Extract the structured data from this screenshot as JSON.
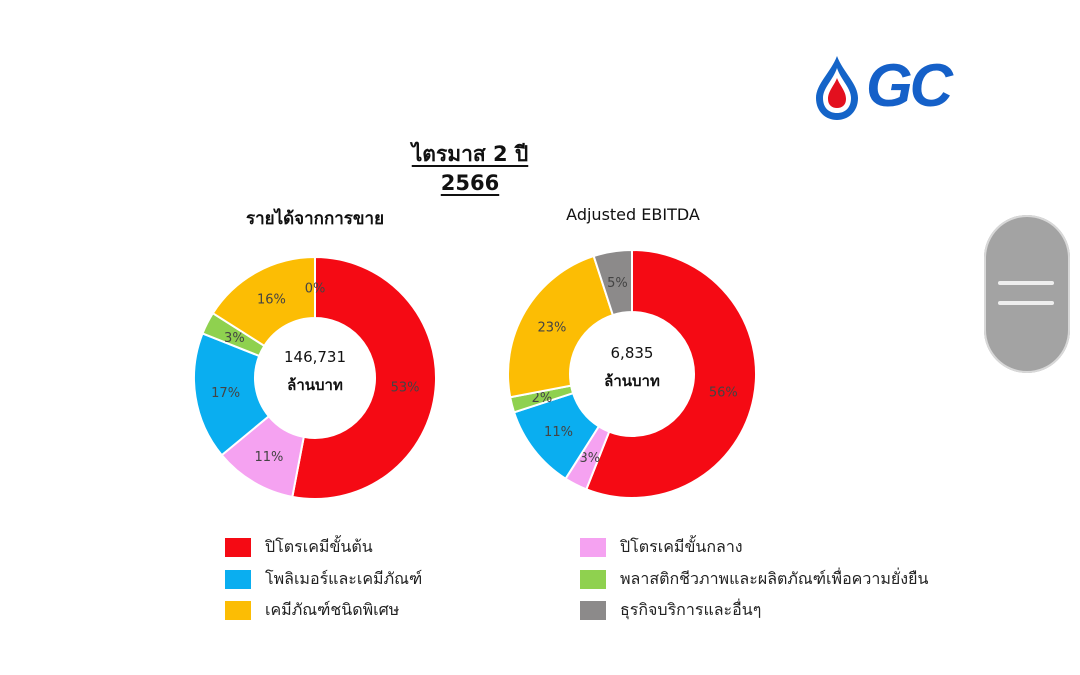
{
  "header": {
    "logo_text": "GC",
    "main_title": "ไตรมาส 2 ปี 2566"
  },
  "colors": {
    "upstream": "#f50a14",
    "intermediate": "#f5a2f1",
    "polymers": "#0aaef0",
    "bio": "#8fd14f",
    "specialty": "#fcbd04",
    "services": "#8c8a8a"
  },
  "chart_data": [
    {
      "type": "pie",
      "title": "รายได้จากการขาย",
      "center_value": "146,731",
      "center_unit": "ล้านบาท",
      "slices": [
        {
          "label": "ปิโตรเคมีขั้นต้น",
          "value": 53,
          "display": "53%",
          "color": "#f50a14"
        },
        {
          "label": "ปิโตรเคมีขั้นกลาง",
          "value": 11,
          "display": "11%",
          "color": "#f5a2f1"
        },
        {
          "label": "โพลิเมอร์และเคมีภัณฑ์",
          "value": 17,
          "display": "17%",
          "color": "#0aaef0"
        },
        {
          "label": "พลาสติกชีวภาพและผลิตภัณฑ์เพื่อความยั่งยืน",
          "value": 3,
          "display": "3%",
          "color": "#8fd14f"
        },
        {
          "label": "เคมีภัณฑ์ชนิดพิเศษ",
          "value": 16,
          "display": "16%",
          "color": "#fcbd04"
        },
        {
          "label": "ธุรกิจบริการและอื่นๆ",
          "value": 0,
          "display": "0%",
          "color": "#8c8a8a"
        }
      ]
    },
    {
      "type": "pie",
      "title": "Adjusted EBITDA",
      "center_value": "6,835",
      "center_unit": "ล้านบาท",
      "slices": [
        {
          "label": "ปิโตรเคมีขั้นต้น",
          "value": 56,
          "display": "56%",
          "color": "#f50a14"
        },
        {
          "label": "ปิโตรเคมีขั้นกลาง",
          "value": 3,
          "display": "3%",
          "color": "#f5a2f1"
        },
        {
          "label": "โพลิเมอร์และเคมีภัณฑ์",
          "value": 11,
          "display": "11%",
          "color": "#0aaef0"
        },
        {
          "label": "พลาสติกชีวภาพและผลิตภัณฑ์เพื่อความยั่งยืน",
          "value": 2,
          "display": "2%",
          "color": "#8fd14f"
        },
        {
          "label": "เคมีภัณฑ์ชนิดพิเศษ",
          "value": 23,
          "display": "23%",
          "color": "#fcbd04"
        },
        {
          "label": "ธุรกิจบริการและอื่นๆ",
          "value": 5,
          "display": "5%",
          "color": "#8c8a8a"
        }
      ]
    }
  ],
  "legend": [
    {
      "label": "ปิโตรเคมีขั้นต้น",
      "color": "#f50a14"
    },
    {
      "label": "ปิโตรเคมีขั้นกลาง",
      "color": "#f5a2f1"
    },
    {
      "label": "โพลิเมอร์และเคมีภัณฑ์",
      "color": "#0aaef0"
    },
    {
      "label": "พลาสติกชีวภาพและผลิตภัณฑ์เพื่อความยั่งยืน",
      "color": "#8fd14f"
    },
    {
      "label": "เคมีภัณฑ์ชนิดพิเศษ",
      "color": "#fcbd04"
    },
    {
      "label": "ธุรกิจบริการและอื่นๆ",
      "color": "#8c8a8a"
    }
  ]
}
